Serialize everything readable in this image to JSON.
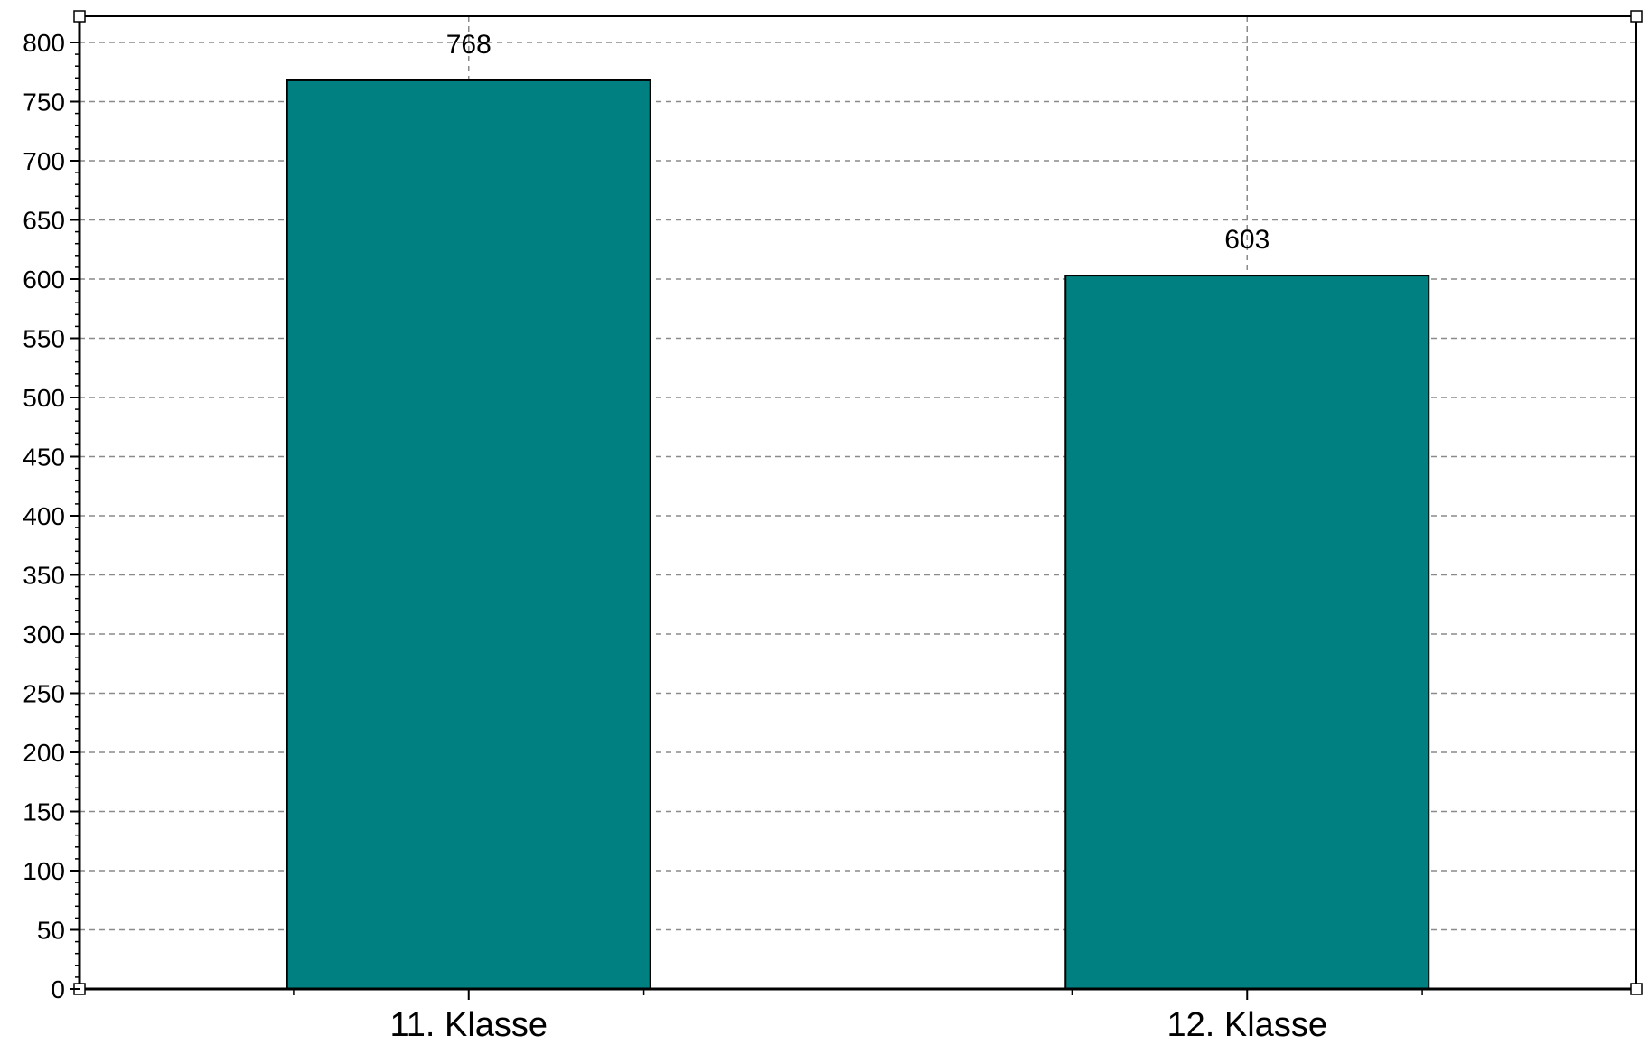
{
  "chart_data": {
    "type": "bar",
    "categories": [
      "11. Klasse",
      "12. Klasse"
    ],
    "values": [
      768,
      603
    ],
    "data_labels": [
      "768",
      "603"
    ],
    "title": "",
    "xlabel": "",
    "ylabel": "",
    "ylim": [
      0,
      800
    ],
    "yticks": [
      0,
      50,
      100,
      150,
      200,
      250,
      300,
      350,
      400,
      450,
      500,
      550,
      600,
      650,
      700,
      750,
      800
    ],
    "grid": true,
    "legend": "none",
    "bar_color": "#008080",
    "bar_edge_color": "#000000"
  }
}
